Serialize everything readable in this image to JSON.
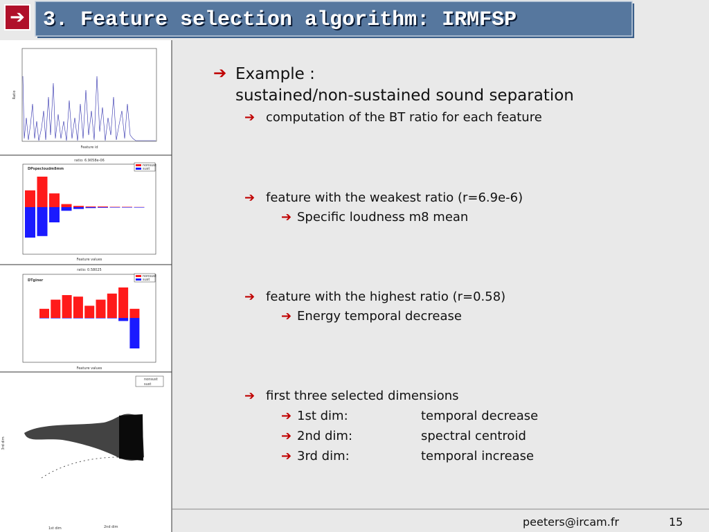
{
  "header": {
    "title": "3. Feature selection algorithm: IRMFSP"
  },
  "example": {
    "lines": [
      "Example :",
      "sustained/non-sustained sound separation"
    ]
  },
  "points": [
    {
      "text": "computation of the BT ratio for each feature"
    },
    {
      "text": "feature with the weakest ratio (r=6.9e-6)",
      "sub": [
        "Specific loudness m8 mean"
      ]
    },
    {
      "text": "feature with the highest ratio (r=0.58)",
      "sub": [
        "Energy temporal decrease"
      ]
    },
    {
      "text": "first three selected dimensions",
      "rows": [
        [
          "1st dim:",
          "temporal decrease"
        ],
        [
          "2nd dim:",
          "spectral centroid"
        ],
        [
          "3rd dim:",
          "temporal increase"
        ]
      ]
    }
  ],
  "figures": [
    {
      "xlabel": "Feature id",
      "ylabel": "Ratio"
    },
    {
      "title": "ratio: 6.9058e-06",
      "label": "DPspecloudm8mm",
      "legend": [
        "nonsust",
        "sust"
      ],
      "xlabel": "Feature values",
      "ylim": [
        -1,
        1
      ],
      "series": [
        {
          "name": "nonsust",
          "color": "#ff1a1a",
          "values": [
            0.55,
            1.0,
            0.45,
            0.1,
            0.04,
            0.02,
            0.02,
            0.01,
            0.01,
            0.005
          ]
        },
        {
          "name": "sust",
          "color": "#1a1aff",
          "values": [
            -1.0,
            -0.95,
            -0.5,
            -0.12,
            -0.06,
            -0.03,
            -0.02,
            -0.01,
            -0.01,
            -0.005
          ]
        }
      ]
    },
    {
      "title": "ratio: 0.58025",
      "label": "DTginer",
      "legend": [
        "nonsust",
        "sust"
      ],
      "xlabel": "Feature values",
      "ylim": [
        -1,
        1
      ],
      "series": [
        {
          "name": "nonsust",
          "color": "#ff1a1a",
          "values": [
            0.3,
            0.6,
            0.75,
            0.7,
            0.4,
            0.6,
            0.8,
            1.0,
            0.3
          ]
        },
        {
          "name": "sust",
          "color": "#1a1aff",
          "values": [
            0,
            0,
            0,
            0,
            0,
            0,
            0,
            -0.1,
            -1.0
          ]
        }
      ]
    },
    {
      "legend": [
        "nonsust",
        "sust"
      ],
      "xlabel": "1st dim",
      "ylabel": "2nd dim",
      "zlabel": "3rd dim"
    }
  ],
  "footer": {
    "email": "peeters@ircam.fr",
    "page": "15"
  }
}
